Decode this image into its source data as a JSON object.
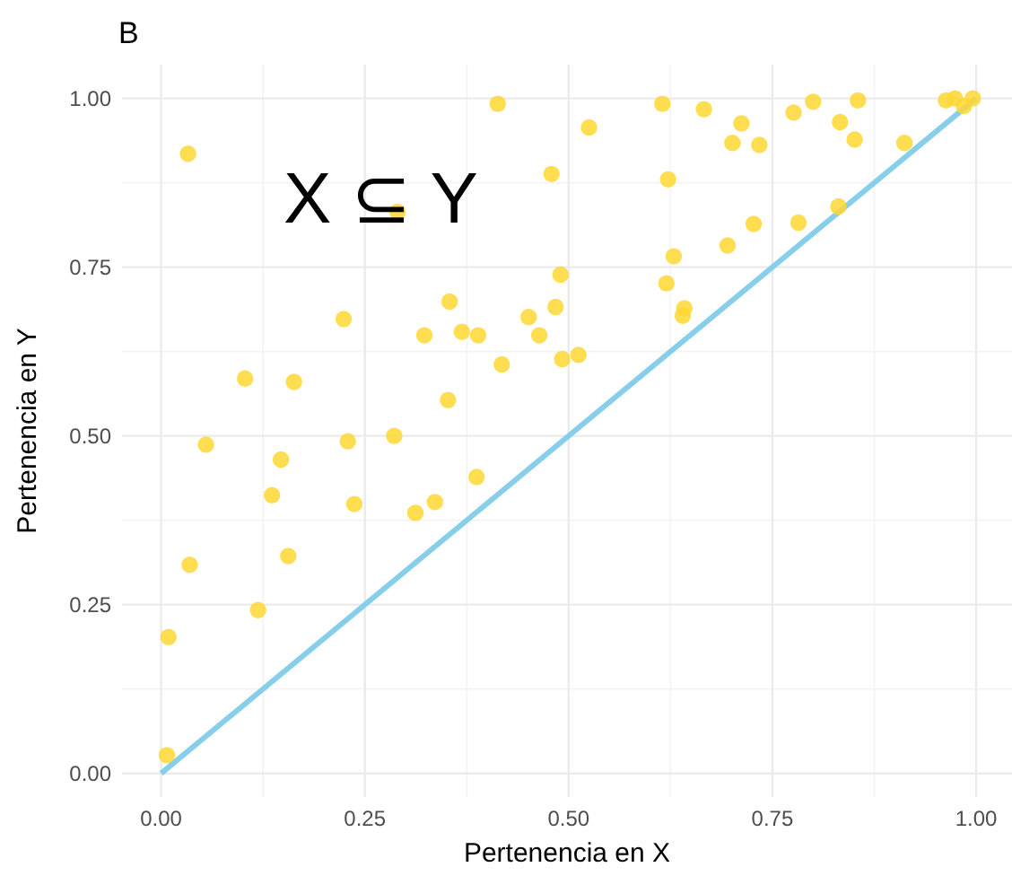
{
  "chart_data": {
    "type": "scatter",
    "title": "B",
    "xlabel": "Pertenencia en X",
    "ylabel": "Pertenencia en Y",
    "annotations": [
      "X ⊆ Y"
    ],
    "xlim": [
      -0.048,
      1.044
    ],
    "ylim": [
      -0.035,
      1.05
    ],
    "xticks": [
      {
        "value": 0,
        "label": "0.00"
      },
      {
        "value": 0.25,
        "label": "0.25"
      },
      {
        "value": 0.5,
        "label": "0.50"
      },
      {
        "value": 0.75,
        "label": "0.75"
      },
      {
        "value": 1,
        "label": "1.00"
      }
    ],
    "yticks": [
      {
        "value": 0,
        "label": "0.00"
      },
      {
        "value": 0.25,
        "label": "0.25"
      },
      {
        "value": 0.5,
        "label": "0.50"
      },
      {
        "value": 0.75,
        "label": "0.75"
      },
      {
        "value": 1,
        "label": "1.00"
      }
    ],
    "grid": true,
    "series": [
      {
        "marker": "circle",
        "color": "#ffd733",
        "x": [
          0.033,
          0.413,
          0.29,
          0.525,
          0.479,
          0.49,
          0.354,
          0.451,
          0.484,
          0.224,
          0.323,
          0.369,
          0.389,
          0.464,
          0.418,
          0.492,
          0.103,
          0.163,
          0.352,
          0.615,
          0.666,
          0.712,
          0.701,
          0.734,
          0.776,
          0.8,
          0.855,
          0.833,
          0.851,
          0.912,
          0.963,
          0.974,
          0.985,
          0.996,
          0.622,
          0.831,
          0.782,
          0.727,
          0.695,
          0.629,
          0.62,
          0.642,
          0.64,
          0.512,
          0.055,
          0.147,
          0.229,
          0.286,
          0.136,
          0.237,
          0.312,
          0.336,
          0.387,
          0.035,
          0.156,
          0.119,
          0.009,
          0.007
        ],
        "values": [
          0.918,
          0.992,
          0.832,
          0.957,
          0.888,
          0.739,
          0.699,
          0.676,
          0.691,
          0.673,
          0.649,
          0.654,
          0.649,
          0.649,
          0.606,
          0.614,
          0.585,
          0.58,
          0.553,
          0.992,
          0.984,
          0.963,
          0.934,
          0.931,
          0.979,
          0.995,
          0.997,
          0.965,
          0.939,
          0.934,
          0.997,
          1.0,
          0.989,
          1.0,
          0.88,
          0.84,
          0.816,
          0.814,
          0.782,
          0.766,
          0.726,
          0.689,
          0.678,
          0.62,
          0.487,
          0.465,
          0.492,
          0.5,
          0.412,
          0.399,
          0.386,
          0.402,
          0.439,
          0.309,
          0.322,
          0.242,
          0.202,
          0.027
        ]
      },
      {
        "type": "line",
        "color": "#87ceeb",
        "x": [
          0,
          1
        ],
        "values": [
          0,
          1
        ]
      }
    ]
  }
}
